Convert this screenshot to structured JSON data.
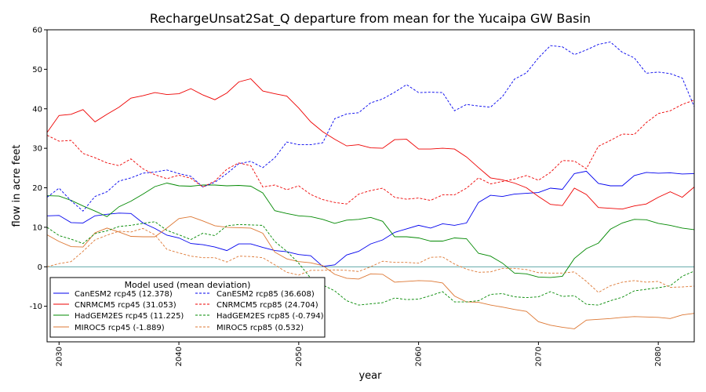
{
  "chart_data": {
    "type": "line",
    "title": "RechargeUnsat2Sat_Q departure from mean for the Yucaipa GW Basin",
    "xlabel": "year",
    "ylabel": "flow in acre feet",
    "xlim": [
      2029,
      2083
    ],
    "ylim": [
      -19,
      60
    ],
    "xticks": [
      2030,
      2040,
      2050,
      2060,
      2070,
      2080
    ],
    "yticks": [
      -10,
      0,
      10,
      20,
      30,
      40,
      50,
      60
    ],
    "zero_line": true,
    "zero_line_color": "#2a8a8a",
    "grid": false,
    "legend": {
      "title": "Model used (mean deviation)",
      "placement": "lower-left",
      "columns": 2
    },
    "x": [
      2029,
      2030,
      2031,
      2032,
      2033,
      2034,
      2035,
      2036,
      2037,
      2038,
      2039,
      2040,
      2041,
      2042,
      2043,
      2044,
      2045,
      2046,
      2047,
      2048,
      2049,
      2050,
      2051,
      2052,
      2053,
      2054,
      2055,
      2056,
      2057,
      2058,
      2059,
      2060,
      2061,
      2062,
      2063,
      2064,
      2065,
      2066,
      2067,
      2068,
      2069,
      2070,
      2071,
      2072,
      2073,
      2074,
      2075,
      2076,
      2077,
      2078,
      2079,
      2080,
      2081,
      2082,
      2083
    ],
    "series": [
      {
        "name": "CanESM2 rcp45 (12.378)",
        "color": "#0000ee",
        "dash": "solid",
        "values": [
          12.9,
          13.0,
          11.2,
          11.1,
          12.9,
          13.3,
          13.6,
          13.5,
          11.1,
          9.7,
          8.0,
          7.3,
          5.9,
          5.6,
          5.0,
          4.1,
          5.8,
          5.8,
          4.9,
          4.1,
          3.8,
          3.1,
          2.8,
          0.1,
          0.5,
          3.0,
          3.9,
          5.8,
          6.8,
          8.7,
          9.6,
          10.5,
          9.8,
          10.9,
          10.5,
          11.1,
          16.3,
          18.1,
          17.8,
          18.4,
          18.6,
          18.8,
          19.9,
          19.6,
          23.6,
          24.2,
          21.1,
          20.5,
          20.5,
          23.1,
          23.9,
          23.7,
          23.8,
          23.5,
          23.6
        ]
      },
      {
        "name": "CNRMCM5 rcp45 (31.053)",
        "color": "#ee0000",
        "dash": "solid",
        "values": [
          34.0,
          38.3,
          38.6,
          39.8,
          36.7,
          38.6,
          40.4,
          42.7,
          43.3,
          44.1,
          43.6,
          43.8,
          45.1,
          43.5,
          42.3,
          44.0,
          46.8,
          47.6,
          44.5,
          43.8,
          43.2,
          40.2,
          36.7,
          34.2,
          32.3,
          30.6,
          30.9,
          30.1,
          30.0,
          32.2,
          32.3,
          29.8,
          29.8,
          30.0,
          29.8,
          27.8,
          25.1,
          22.5,
          22.0,
          21.2,
          20.0,
          17.8,
          15.8,
          15.5,
          19.9,
          18.3,
          15.0,
          14.8,
          14.6,
          15.4,
          15.9,
          17.6,
          19.0,
          17.6,
          20.2
        ]
      },
      {
        "name": "HadGEM2ES rcp45 (11.225)",
        "color": "#008800",
        "dash": "solid",
        "values": [
          18.0,
          17.9,
          16.8,
          15.4,
          14.1,
          12.7,
          15.2,
          16.6,
          18.4,
          20.3,
          21.2,
          20.5,
          20.4,
          20.7,
          20.7,
          20.5,
          20.6,
          20.4,
          18.7,
          14.2,
          13.5,
          12.9,
          12.7,
          12.0,
          11.0,
          11.8,
          12.0,
          12.5,
          11.5,
          7.6,
          7.6,
          7.3,
          6.5,
          6.5,
          7.3,
          7.1,
          3.4,
          2.7,
          0.9,
          -1.6,
          -1.8,
          -2.6,
          -2.7,
          -2.4,
          2.1,
          4.6,
          6.0,
          9.5,
          11.1,
          12.0,
          11.9,
          11.0,
          10.5,
          9.8,
          9.4
        ]
      },
      {
        "name": "MIROC5 rcp45 (-1.889)",
        "color": "#dd7733",
        "dash": "solid",
        "values": [
          8.1,
          6.4,
          5.1,
          5.0,
          8.6,
          9.8,
          8.8,
          7.7,
          7.6,
          7.6,
          9.8,
          12.2,
          12.7,
          11.6,
          10.4,
          10.0,
          9.9,
          9.8,
          8.5,
          3.7,
          2.0,
          1.3,
          1.0,
          0.3,
          -1.9,
          -2.9,
          -3.1,
          -1.8,
          -1.9,
          -3.9,
          -3.7,
          -3.5,
          -3.6,
          -4.1,
          -7.4,
          -8.9,
          -9.0,
          -9.7,
          -10.2,
          -10.8,
          -11.3,
          -13.9,
          -14.8,
          -15.3,
          -15.7,
          -13.5,
          -13.3,
          -13.1,
          -12.8,
          -12.6,
          -12.7,
          -12.8,
          -13.1,
          -12.2,
          -11.8
        ]
      },
      {
        "name": "CanESM2 rcp85 (36.608)",
        "color": "#0000ee",
        "dash": "dashed",
        "values": [
          17.6,
          19.9,
          16.7,
          14.1,
          17.8,
          19.0,
          21.7,
          22.5,
          23.7,
          24.0,
          24.5,
          23.6,
          22.9,
          20.2,
          21.4,
          23.6,
          26.1,
          26.7,
          25.1,
          27.6,
          31.6,
          30.9,
          30.9,
          31.4,
          37.5,
          38.7,
          39.0,
          41.5,
          42.5,
          44.2,
          46.1,
          44.1,
          44.2,
          44.1,
          39.5,
          41.1,
          40.7,
          40.4,
          43.1,
          47.5,
          49.1,
          52.9,
          56.0,
          55.7,
          53.7,
          54.9,
          56.3,
          56.9,
          54.3,
          52.9,
          49.0,
          49.3,
          48.9,
          47.8,
          40.5
        ]
      },
      {
        "name": "CNRMCM5 rcp85 (24.704)",
        "color": "#ee0000",
        "dash": "dashed",
        "values": [
          33.3,
          31.8,
          32.0,
          28.7,
          27.6,
          26.3,
          25.6,
          27.3,
          24.8,
          23.3,
          22.3,
          23.2,
          22.4,
          20.2,
          21.7,
          24.7,
          26.3,
          25.6,
          20.2,
          20.7,
          19.5,
          20.5,
          18.3,
          17.0,
          16.3,
          15.9,
          18.4,
          19.3,
          19.9,
          17.6,
          17.1,
          17.4,
          16.8,
          18.2,
          18.2,
          19.9,
          22.5,
          21.0,
          21.6,
          22.2,
          23.1,
          21.9,
          23.9,
          26.9,
          26.8,
          24.8,
          30.5,
          32.0,
          33.6,
          33.5,
          36.5,
          38.8,
          39.5,
          41.1,
          42.2
        ]
      },
      {
        "name": "HadGEM2ES rcp85 (-0.794)",
        "color": "#008800",
        "dash": "dashed",
        "values": [
          10.0,
          7.9,
          7.0,
          5.9,
          8.4,
          9.1,
          10.2,
          10.5,
          11.0,
          11.4,
          9.2,
          8.1,
          6.9,
          8.5,
          7.9,
          10.4,
          10.7,
          10.6,
          10.5,
          6.4,
          3.9,
          0.9,
          -2.9,
          -4.6,
          -6.1,
          -8.6,
          -9.7,
          -9.4,
          -9.1,
          -7.9,
          -8.3,
          -8.2,
          -7.3,
          -6.3,
          -8.9,
          -8.9,
          -8.6,
          -7.0,
          -6.8,
          -7.6,
          -7.8,
          -7.6,
          -6.3,
          -7.5,
          -7.3,
          -9.5,
          -9.7,
          -8.6,
          -7.7,
          -6.1,
          -5.7,
          -5.3,
          -4.8,
          -2.4,
          -1.1
        ]
      },
      {
        "name": "MIROC5 rcp85 (0.532)",
        "color": "#dd7733",
        "dash": "dashed",
        "values": [
          0.0,
          0.8,
          1.3,
          3.9,
          6.8,
          8.0,
          9.0,
          8.8,
          9.7,
          8.1,
          4.4,
          3.5,
          2.7,
          2.3,
          2.3,
          1.2,
          2.7,
          2.6,
          2.3,
          0.5,
          -1.4,
          -2.1,
          -0.9,
          -0.9,
          -0.8,
          -0.9,
          -1.2,
          0.0,
          1.4,
          1.1,
          1.1,
          0.9,
          2.4,
          2.5,
          0.7,
          -0.6,
          -1.4,
          -1.3,
          -0.4,
          -0.4,
          -0.7,
          -1.5,
          -1.6,
          -1.6,
          -1.3,
          -3.7,
          -6.5,
          -4.8,
          -3.9,
          -3.5,
          -3.9,
          -3.7,
          -5.2,
          -5.1,
          -4.9
        ]
      }
    ]
  }
}
